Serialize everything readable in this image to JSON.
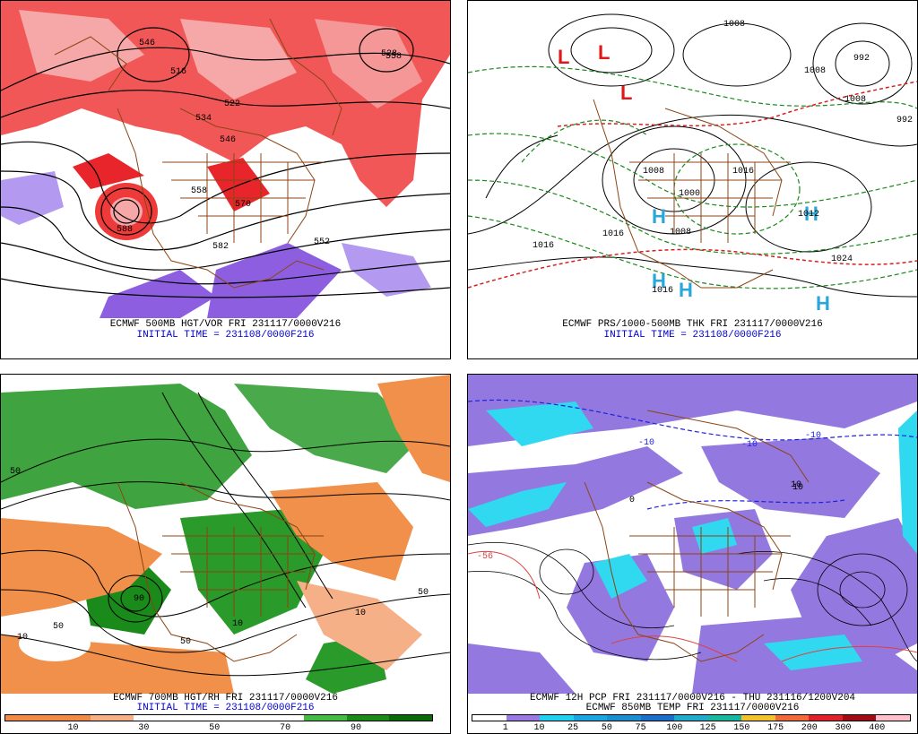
{
  "panels": {
    "top_left": {
      "caption_line1": "ECMWF 500MB HGT/VOR FRI 231117/0000V216",
      "caption_line2": "INITIAL TIME = 231108/0000F216",
      "labels": [
        "516",
        "522",
        "528",
        "534",
        "546",
        "558",
        "570",
        "582",
        "552",
        "588",
        "546",
        "558"
      ]
    },
    "top_right": {
      "caption_line1": "ECMWF PRS/1000-500MB THK FRI 231117/0000V216",
      "caption_line2": "INITIAL TIME = 231108/0000F216",
      "labels": [
        "1008",
        "992",
        "1008",
        "992",
        "1008",
        "1008",
        "1000",
        "1016",
        "1012",
        "1016",
        "1008",
        "1024",
        "1016",
        "1016"
      ],
      "symbols": [
        "L",
        "L",
        "L",
        "H",
        "H",
        "H",
        "H",
        "H"
      ]
    },
    "bottom_left": {
      "caption_line1": "ECMWF 700MB HGT/RH FRI 231117/0000V216",
      "caption_line2": "INITIAL TIME = 231108/0000F216",
      "legend_ticks": [
        "10",
        "30",
        "50",
        "70",
        "90"
      ],
      "labels": [
        "50",
        "10",
        "50",
        "90",
        "50",
        "10",
        "50",
        "10"
      ]
    },
    "bottom_right": {
      "caption_line1": "ECMWF 12H PCP FRI 231117/0000V216 - THU 231116/1200V204",
      "caption_line2": "ECMWF 850MB TEMP FRI 231117/0000V216",
      "legend_ticks": [
        "1",
        "10",
        "25",
        "50",
        "75",
        "100",
        "125",
        "150",
        "175",
        "200",
        "300",
        "400"
      ],
      "labels": [
        "-10",
        "0",
        "10",
        "-10",
        "10",
        "-10",
        "-56"
      ]
    }
  },
  "colors": {
    "vort_red": "#e8252a",
    "vort_pink": "#f6a8a8",
    "vort_purple": "#8d5fe0",
    "country_brown": "#8b4513",
    "rh_orange": "#f0904a",
    "rh_green": "#2a9a2a",
    "pcp_purple": "#9378e0",
    "pcp_cyan": "#30d8f0",
    "caption_blue": "#0000cc"
  },
  "rh_legend_colors": [
    "#f08a44",
    "#f08a44",
    "#f6b088",
    "#ffffff",
    "#ffffff",
    "#ffffff",
    "#ffffff",
    "#44bb44",
    "#1a8a1a",
    "#0a6a0a"
  ],
  "pcp_legend_colors": [
    "#ffffff",
    "#9a7ae2",
    "#22d0f0",
    "#1aa6e0",
    "#1a90d0",
    "#1a70c8",
    "#22aacc",
    "#18b8a0",
    "#f2c22a",
    "#f06a3a",
    "#e0202a",
    "#a00c14",
    "#ffc0cb"
  ]
}
